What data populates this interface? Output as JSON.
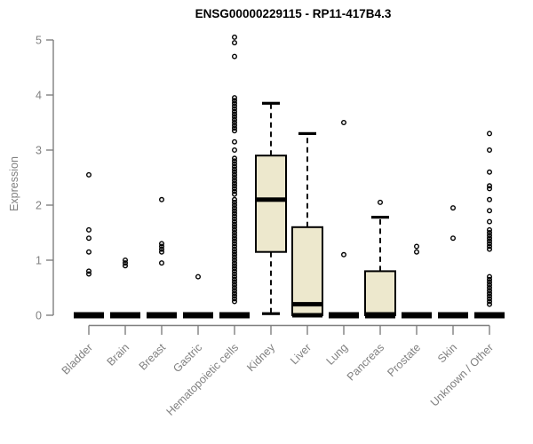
{
  "colors": {
    "box_fill": "#EDE8CD",
    "box_stroke": "#000000",
    "axis": "#7F7F7F",
    "tick_label": "#808080",
    "title": "#000000",
    "background": "#FFFFFF"
  },
  "chart_data": {
    "type": "boxplot",
    "title": "ENSG00000229115 - RP11-417B4.3",
    "ylabel": "Expression",
    "xlabel": "",
    "ylim": [
      0,
      5
    ],
    "yticks": [
      0,
      1,
      2,
      3,
      4,
      5
    ],
    "grid": false,
    "legend": false,
    "categories": [
      "Bladder",
      "Brain",
      "Breast",
      "Gastric",
      "Hematopoietic cells",
      "Kidney",
      "Liver",
      "Lung",
      "Pancreas",
      "Prostate",
      "Skin",
      "Unknown / Other"
    ],
    "boxes": [
      {
        "name": "Bladder",
        "q1": 0,
        "median": 0,
        "q3": 0,
        "whisker_low": 0,
        "whisker_high": 0,
        "outliers": [
          2.55,
          1.55,
          1.4,
          1.15,
          0.8,
          0.75
        ]
      },
      {
        "name": "Brain",
        "q1": 0,
        "median": 0,
        "q3": 0,
        "whisker_low": 0,
        "whisker_high": 0,
        "outliers": [
          1.0,
          0.95,
          0.9
        ]
      },
      {
        "name": "Breast",
        "q1": 0,
        "median": 0,
        "q3": 0,
        "whisker_low": 0,
        "whisker_high": 0,
        "outliers": [
          2.1,
          1.3,
          1.25,
          1.2,
          1.15,
          0.95
        ]
      },
      {
        "name": "Gastric",
        "q1": 0,
        "median": 0,
        "q3": 0,
        "whisker_low": 0,
        "whisker_high": 0,
        "outliers": [
          0.7
        ]
      },
      {
        "name": "Hematopoietic cells",
        "q1": 0,
        "median": 0,
        "q3": 0,
        "whisker_low": 0,
        "whisker_high": 0,
        "outliers": [
          5.05,
          4.95,
          4.7,
          3.95,
          3.9,
          3.85,
          3.8,
          3.75,
          3.7,
          3.65,
          3.6,
          3.55,
          3.5,
          3.45,
          3.4,
          3.35,
          3.15,
          3.0,
          2.85,
          2.8,
          2.75,
          2.7,
          2.65,
          2.6,
          2.55,
          2.5,
          2.45,
          2.4,
          2.35,
          2.3,
          2.25,
          2.2,
          2.1,
          2.05,
          2.0,
          1.95,
          1.9,
          1.85,
          1.8,
          1.75,
          1.7,
          1.65,
          1.6,
          1.55,
          1.5,
          1.45,
          1.4,
          1.35,
          1.3,
          1.25,
          1.2,
          1.15,
          1.1,
          1.05,
          1.0,
          0.95,
          0.9,
          0.85,
          0.8,
          0.75,
          0.7,
          0.65,
          0.6,
          0.55,
          0.5,
          0.45,
          0.4,
          0.35,
          0.3,
          0.25
        ]
      },
      {
        "name": "Kidney",
        "q1": 1.15,
        "median": 2.1,
        "q3": 2.9,
        "whisker_low": 0,
        "whisker_high": 3.85,
        "outliers": []
      },
      {
        "name": "Liver",
        "q1": 0,
        "median": 0.2,
        "q3": 1.6,
        "whisker_low": 0,
        "whisker_high": 3.3,
        "outliers": []
      },
      {
        "name": "Lung",
        "q1": 0,
        "median": 0,
        "q3": 0,
        "whisker_low": 0,
        "whisker_high": 0,
        "outliers": [
          3.5,
          1.1
        ]
      },
      {
        "name": "Pancreas",
        "q1": 0,
        "median": 0,
        "q3": 0.8,
        "whisker_low": 0,
        "whisker_high": 1.78,
        "outliers": [
          2.05
        ]
      },
      {
        "name": "Prostate",
        "q1": 0,
        "median": 0,
        "q3": 0,
        "whisker_low": 0,
        "whisker_high": 0,
        "outliers": [
          1.25,
          1.15
        ]
      },
      {
        "name": "Skin",
        "q1": 0,
        "median": 0,
        "q3": 0,
        "whisker_low": 0,
        "whisker_high": 0,
        "outliers": [
          1.95,
          1.4
        ]
      },
      {
        "name": "Unknown / Other",
        "q1": 0,
        "median": 0,
        "q3": 0,
        "whisker_low": 0,
        "whisker_high": 0,
        "outliers": [
          3.3,
          3.0,
          2.6,
          2.35,
          2.3,
          2.1,
          1.9,
          1.7,
          1.55,
          1.5,
          1.45,
          1.4,
          1.35,
          1.3,
          1.25,
          1.2,
          0.7,
          0.65,
          0.6,
          0.55,
          0.5,
          0.45,
          0.4,
          0.35,
          0.3,
          0.25,
          0.2
        ]
      }
    ]
  }
}
